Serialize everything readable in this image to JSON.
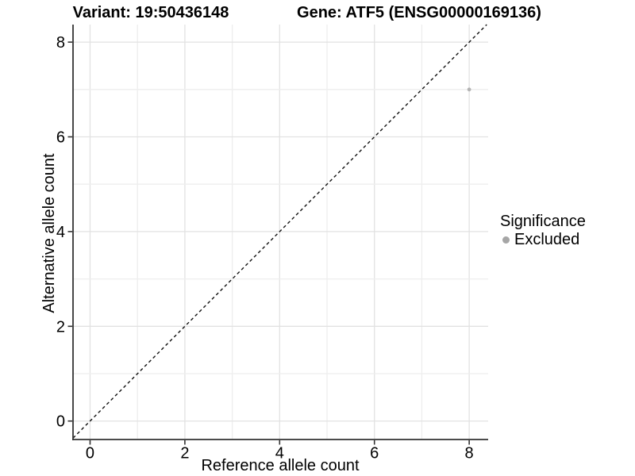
{
  "titles": {
    "variant": "Variant: 19:50436148",
    "gene": "Gene: ATF5 (ENSG00000169136)"
  },
  "chart_data": {
    "type": "scatter",
    "title": "Variant: 19:50436148  /  Gene: ATF5 (ENSG00000169136)",
    "xlabel": "Reference allele count",
    "ylabel": "Alternative allele count",
    "xlim": [
      -0.36,
      8.4
    ],
    "ylim": [
      -0.39,
      8.37
    ],
    "x_ticks": [
      0,
      2,
      4,
      6,
      8
    ],
    "y_ticks": [
      0,
      2,
      4,
      6,
      8
    ],
    "grid": "on",
    "grid_interval": 1,
    "points": [
      {
        "x": 8,
        "y": 7,
        "significance": "Excluded"
      }
    ],
    "reference_line": {
      "type": "identity y=x",
      "style": "dashed"
    },
    "legend_position": "right",
    "legend": {
      "title": "Significance",
      "items": [
        {
          "label": "Excluded",
          "color": "#a6a6a6"
        }
      ]
    }
  },
  "colors": {
    "background": "#ffffff",
    "text": "#000000",
    "axis": "#333333",
    "grid_major": "#e2e2e2",
    "grid_minor": "#eeeeee",
    "dashed_line": "#111111",
    "point": "#b3b3b3",
    "legend_dot": "#a6a6a6"
  }
}
